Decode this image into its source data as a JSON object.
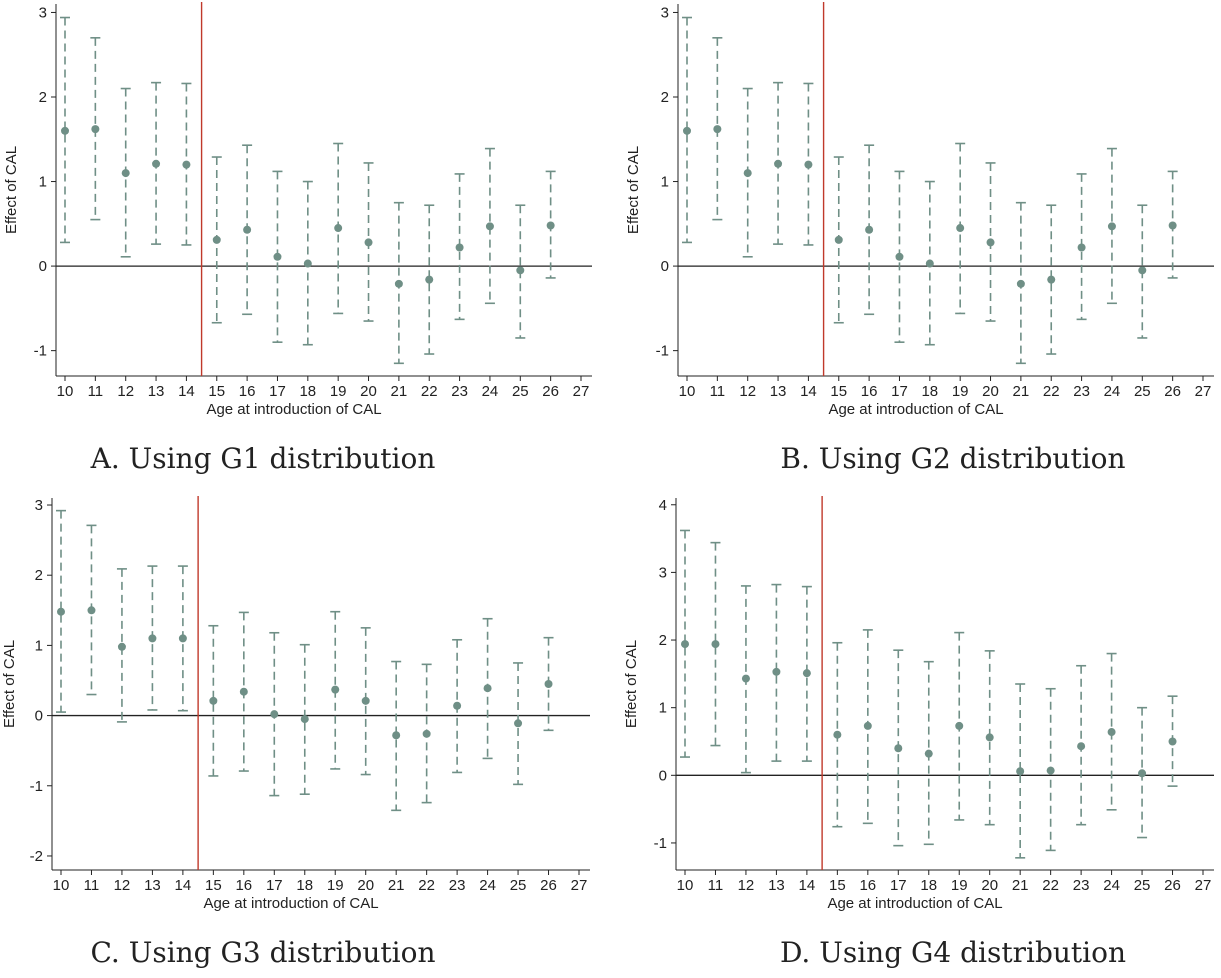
{
  "colors": {
    "marker": "#6f8f86",
    "ci": "#6f8f86",
    "vline": "#c0392b",
    "axis": "#222222",
    "text": "#222222"
  },
  "chart_data": [
    {
      "type": "scatter",
      "caption": "A. Using G1 distribution",
      "xlabel": "Age at introduction of CAL",
      "ylabel": "Effect of CAL",
      "xlim": [
        10,
        27
      ],
      "ylim": [
        -1.3,
        3.1
      ],
      "yticks": [
        -1,
        0,
        1,
        2,
        3
      ],
      "xticks": [
        10,
        11,
        12,
        13,
        14,
        15,
        16,
        17,
        18,
        19,
        20,
        21,
        22,
        23,
        24,
        25,
        26,
        27
      ],
      "reference_x": 14.5,
      "reference_y": 0,
      "points": [
        {
          "x": 10,
          "y": 1.6,
          "lo": 0.28,
          "hi": 2.94
        },
        {
          "x": 11,
          "y": 1.62,
          "lo": 0.55,
          "hi": 2.7
        },
        {
          "x": 12,
          "y": 1.1,
          "lo": 0.11,
          "hi": 2.1
        },
        {
          "x": 13,
          "y": 1.21,
          "lo": 0.26,
          "hi": 2.17
        },
        {
          "x": 14,
          "y": 1.2,
          "lo": 0.25,
          "hi": 2.16
        },
        {
          "x": 15,
          "y": 0.31,
          "lo": -0.67,
          "hi": 1.29
        },
        {
          "x": 16,
          "y": 0.43,
          "lo": -0.57,
          "hi": 1.43
        },
        {
          "x": 17,
          "y": 0.11,
          "lo": -0.9,
          "hi": 1.12
        },
        {
          "x": 18,
          "y": 0.03,
          "lo": -0.93,
          "hi": 1.0
        },
        {
          "x": 19,
          "y": 0.45,
          "lo": -0.56,
          "hi": 1.45
        },
        {
          "x": 20,
          "y": 0.28,
          "lo": -0.65,
          "hi": 1.22
        },
        {
          "x": 21,
          "y": -0.21,
          "lo": -1.15,
          "hi": 0.75
        },
        {
          "x": 22,
          "y": -0.16,
          "lo": -1.04,
          "hi": 0.72
        },
        {
          "x": 23,
          "y": 0.22,
          "lo": -0.63,
          "hi": 1.09
        },
        {
          "x": 24,
          "y": 0.47,
          "lo": -0.44,
          "hi": 1.39
        },
        {
          "x": 25,
          "y": -0.05,
          "lo": -0.85,
          "hi": 0.72
        },
        {
          "x": 26,
          "y": 0.48,
          "lo": -0.14,
          "hi": 1.12
        }
      ]
    },
    {
      "type": "scatter",
      "caption": "B. Using G2 distribution",
      "xlabel": "Age at introduction of CAL",
      "ylabel": "Effect of CAL",
      "xlim": [
        10,
        27
      ],
      "ylim": [
        -1.3,
        3.1
      ],
      "yticks": [
        -1,
        0,
        1,
        2,
        3
      ],
      "xticks": [
        10,
        11,
        12,
        13,
        14,
        15,
        16,
        17,
        18,
        19,
        20,
        21,
        22,
        23,
        24,
        25,
        26,
        27
      ],
      "reference_x": 14.5,
      "reference_y": 0,
      "points": [
        {
          "x": 10,
          "y": 1.6,
          "lo": 0.28,
          "hi": 2.94
        },
        {
          "x": 11,
          "y": 1.62,
          "lo": 0.55,
          "hi": 2.7
        },
        {
          "x": 12,
          "y": 1.1,
          "lo": 0.11,
          "hi": 2.1
        },
        {
          "x": 13,
          "y": 1.21,
          "lo": 0.26,
          "hi": 2.17
        },
        {
          "x": 14,
          "y": 1.2,
          "lo": 0.25,
          "hi": 2.16
        },
        {
          "x": 15,
          "y": 0.31,
          "lo": -0.67,
          "hi": 1.29
        },
        {
          "x": 16,
          "y": 0.43,
          "lo": -0.57,
          "hi": 1.43
        },
        {
          "x": 17,
          "y": 0.11,
          "lo": -0.9,
          "hi": 1.12
        },
        {
          "x": 18,
          "y": 0.03,
          "lo": -0.93,
          "hi": 1.0
        },
        {
          "x": 19,
          "y": 0.45,
          "lo": -0.56,
          "hi": 1.45
        },
        {
          "x": 20,
          "y": 0.28,
          "lo": -0.65,
          "hi": 1.22
        },
        {
          "x": 21,
          "y": -0.21,
          "lo": -1.15,
          "hi": 0.75
        },
        {
          "x": 22,
          "y": -0.16,
          "lo": -1.04,
          "hi": 0.72
        },
        {
          "x": 23,
          "y": 0.22,
          "lo": -0.63,
          "hi": 1.09
        },
        {
          "x": 24,
          "y": 0.47,
          "lo": -0.44,
          "hi": 1.39
        },
        {
          "x": 25,
          "y": -0.05,
          "lo": -0.85,
          "hi": 0.72
        },
        {
          "x": 26,
          "y": 0.48,
          "lo": -0.14,
          "hi": 1.12
        }
      ]
    },
    {
      "type": "scatter",
      "caption": "C. Using G3 distribution",
      "xlabel": "Age at introduction of CAL",
      "ylabel": "Effect of CAL",
      "xlim": [
        10,
        27
      ],
      "ylim": [
        -2.2,
        3.1
      ],
      "yticks": [
        -2,
        -1,
        0,
        1,
        2,
        3
      ],
      "xticks": [
        10,
        11,
        12,
        13,
        14,
        15,
        16,
        17,
        18,
        19,
        20,
        21,
        22,
        23,
        24,
        25,
        26,
        27
      ],
      "reference_x": 14.5,
      "reference_y": 0,
      "points": [
        {
          "x": 10,
          "y": 1.48,
          "lo": 0.05,
          "hi": 2.92
        },
        {
          "x": 11,
          "y": 1.5,
          "lo": 0.3,
          "hi": 2.71
        },
        {
          "x": 12,
          "y": 0.98,
          "lo": -0.09,
          "hi": 2.09
        },
        {
          "x": 13,
          "y": 1.1,
          "lo": 0.08,
          "hi": 2.13
        },
        {
          "x": 14,
          "y": 1.1,
          "lo": 0.07,
          "hi": 2.13
        },
        {
          "x": 15,
          "y": 0.21,
          "lo": -0.86,
          "hi": 1.28
        },
        {
          "x": 16,
          "y": 0.34,
          "lo": -0.79,
          "hi": 1.47
        },
        {
          "x": 17,
          "y": 0.02,
          "lo": -1.14,
          "hi": 1.18
        },
        {
          "x": 18,
          "y": -0.05,
          "lo": -1.12,
          "hi": 1.01
        },
        {
          "x": 19,
          "y": 0.37,
          "lo": -0.76,
          "hi": 1.48
        },
        {
          "x": 20,
          "y": 0.21,
          "lo": -0.84,
          "hi": 1.25
        },
        {
          "x": 21,
          "y": -0.28,
          "lo": -1.35,
          "hi": 0.77
        },
        {
          "x": 22,
          "y": -0.26,
          "lo": -1.24,
          "hi": 0.73
        },
        {
          "x": 23,
          "y": 0.14,
          "lo": -0.81,
          "hi": 1.08
        },
        {
          "x": 24,
          "y": 0.39,
          "lo": -0.61,
          "hi": 1.38
        },
        {
          "x": 25,
          "y": -0.11,
          "lo": -0.98,
          "hi": 0.75
        },
        {
          "x": 26,
          "y": 0.45,
          "lo": -0.21,
          "hi": 1.11
        }
      ]
    },
    {
      "type": "scatter",
      "caption": "D. Using G4 distribution",
      "xlabel": "Age at introduction of CAL",
      "ylabel": "Effect of CAL",
      "xlim": [
        10,
        27
      ],
      "ylim": [
        -1.4,
        4.1
      ],
      "yticks": [
        -1,
        0,
        1,
        2,
        3,
        4
      ],
      "xticks": [
        10,
        11,
        12,
        13,
        14,
        15,
        16,
        17,
        18,
        19,
        20,
        21,
        22,
        23,
        24,
        25,
        26,
        27
      ],
      "reference_x": 14.5,
      "reference_y": 0,
      "points": [
        {
          "x": 10,
          "y": 1.94,
          "lo": 0.27,
          "hi": 3.62
        },
        {
          "x": 11,
          "y": 1.94,
          "lo": 0.44,
          "hi": 3.44
        },
        {
          "x": 12,
          "y": 1.43,
          "lo": 0.04,
          "hi": 2.8
        },
        {
          "x": 13,
          "y": 1.53,
          "lo": 0.21,
          "hi": 2.82
        },
        {
          "x": 14,
          "y": 1.51,
          "lo": 0.21,
          "hi": 2.79
        },
        {
          "x": 15,
          "y": 0.6,
          "lo": -0.76,
          "hi": 1.96
        },
        {
          "x": 16,
          "y": 0.73,
          "lo": -0.71,
          "hi": 2.15
        },
        {
          "x": 17,
          "y": 0.4,
          "lo": -1.04,
          "hi": 1.85
        },
        {
          "x": 18,
          "y": 0.32,
          "lo": -1.02,
          "hi": 1.68
        },
        {
          "x": 19,
          "y": 0.73,
          "lo": -0.66,
          "hi": 2.11
        },
        {
          "x": 20,
          "y": 0.56,
          "lo": -0.73,
          "hi": 1.84
        },
        {
          "x": 21,
          "y": 0.06,
          "lo": -1.22,
          "hi": 1.35
        },
        {
          "x": 22,
          "y": 0.07,
          "lo": -1.11,
          "hi": 1.28
        },
        {
          "x": 23,
          "y": 0.43,
          "lo": -0.73,
          "hi": 1.62
        },
        {
          "x": 24,
          "y": 0.64,
          "lo": -0.51,
          "hi": 1.8
        },
        {
          "x": 25,
          "y": 0.03,
          "lo": -0.92,
          "hi": 1.0
        },
        {
          "x": 26,
          "y": 0.5,
          "lo": -0.16,
          "hi": 1.17
        }
      ]
    }
  ]
}
